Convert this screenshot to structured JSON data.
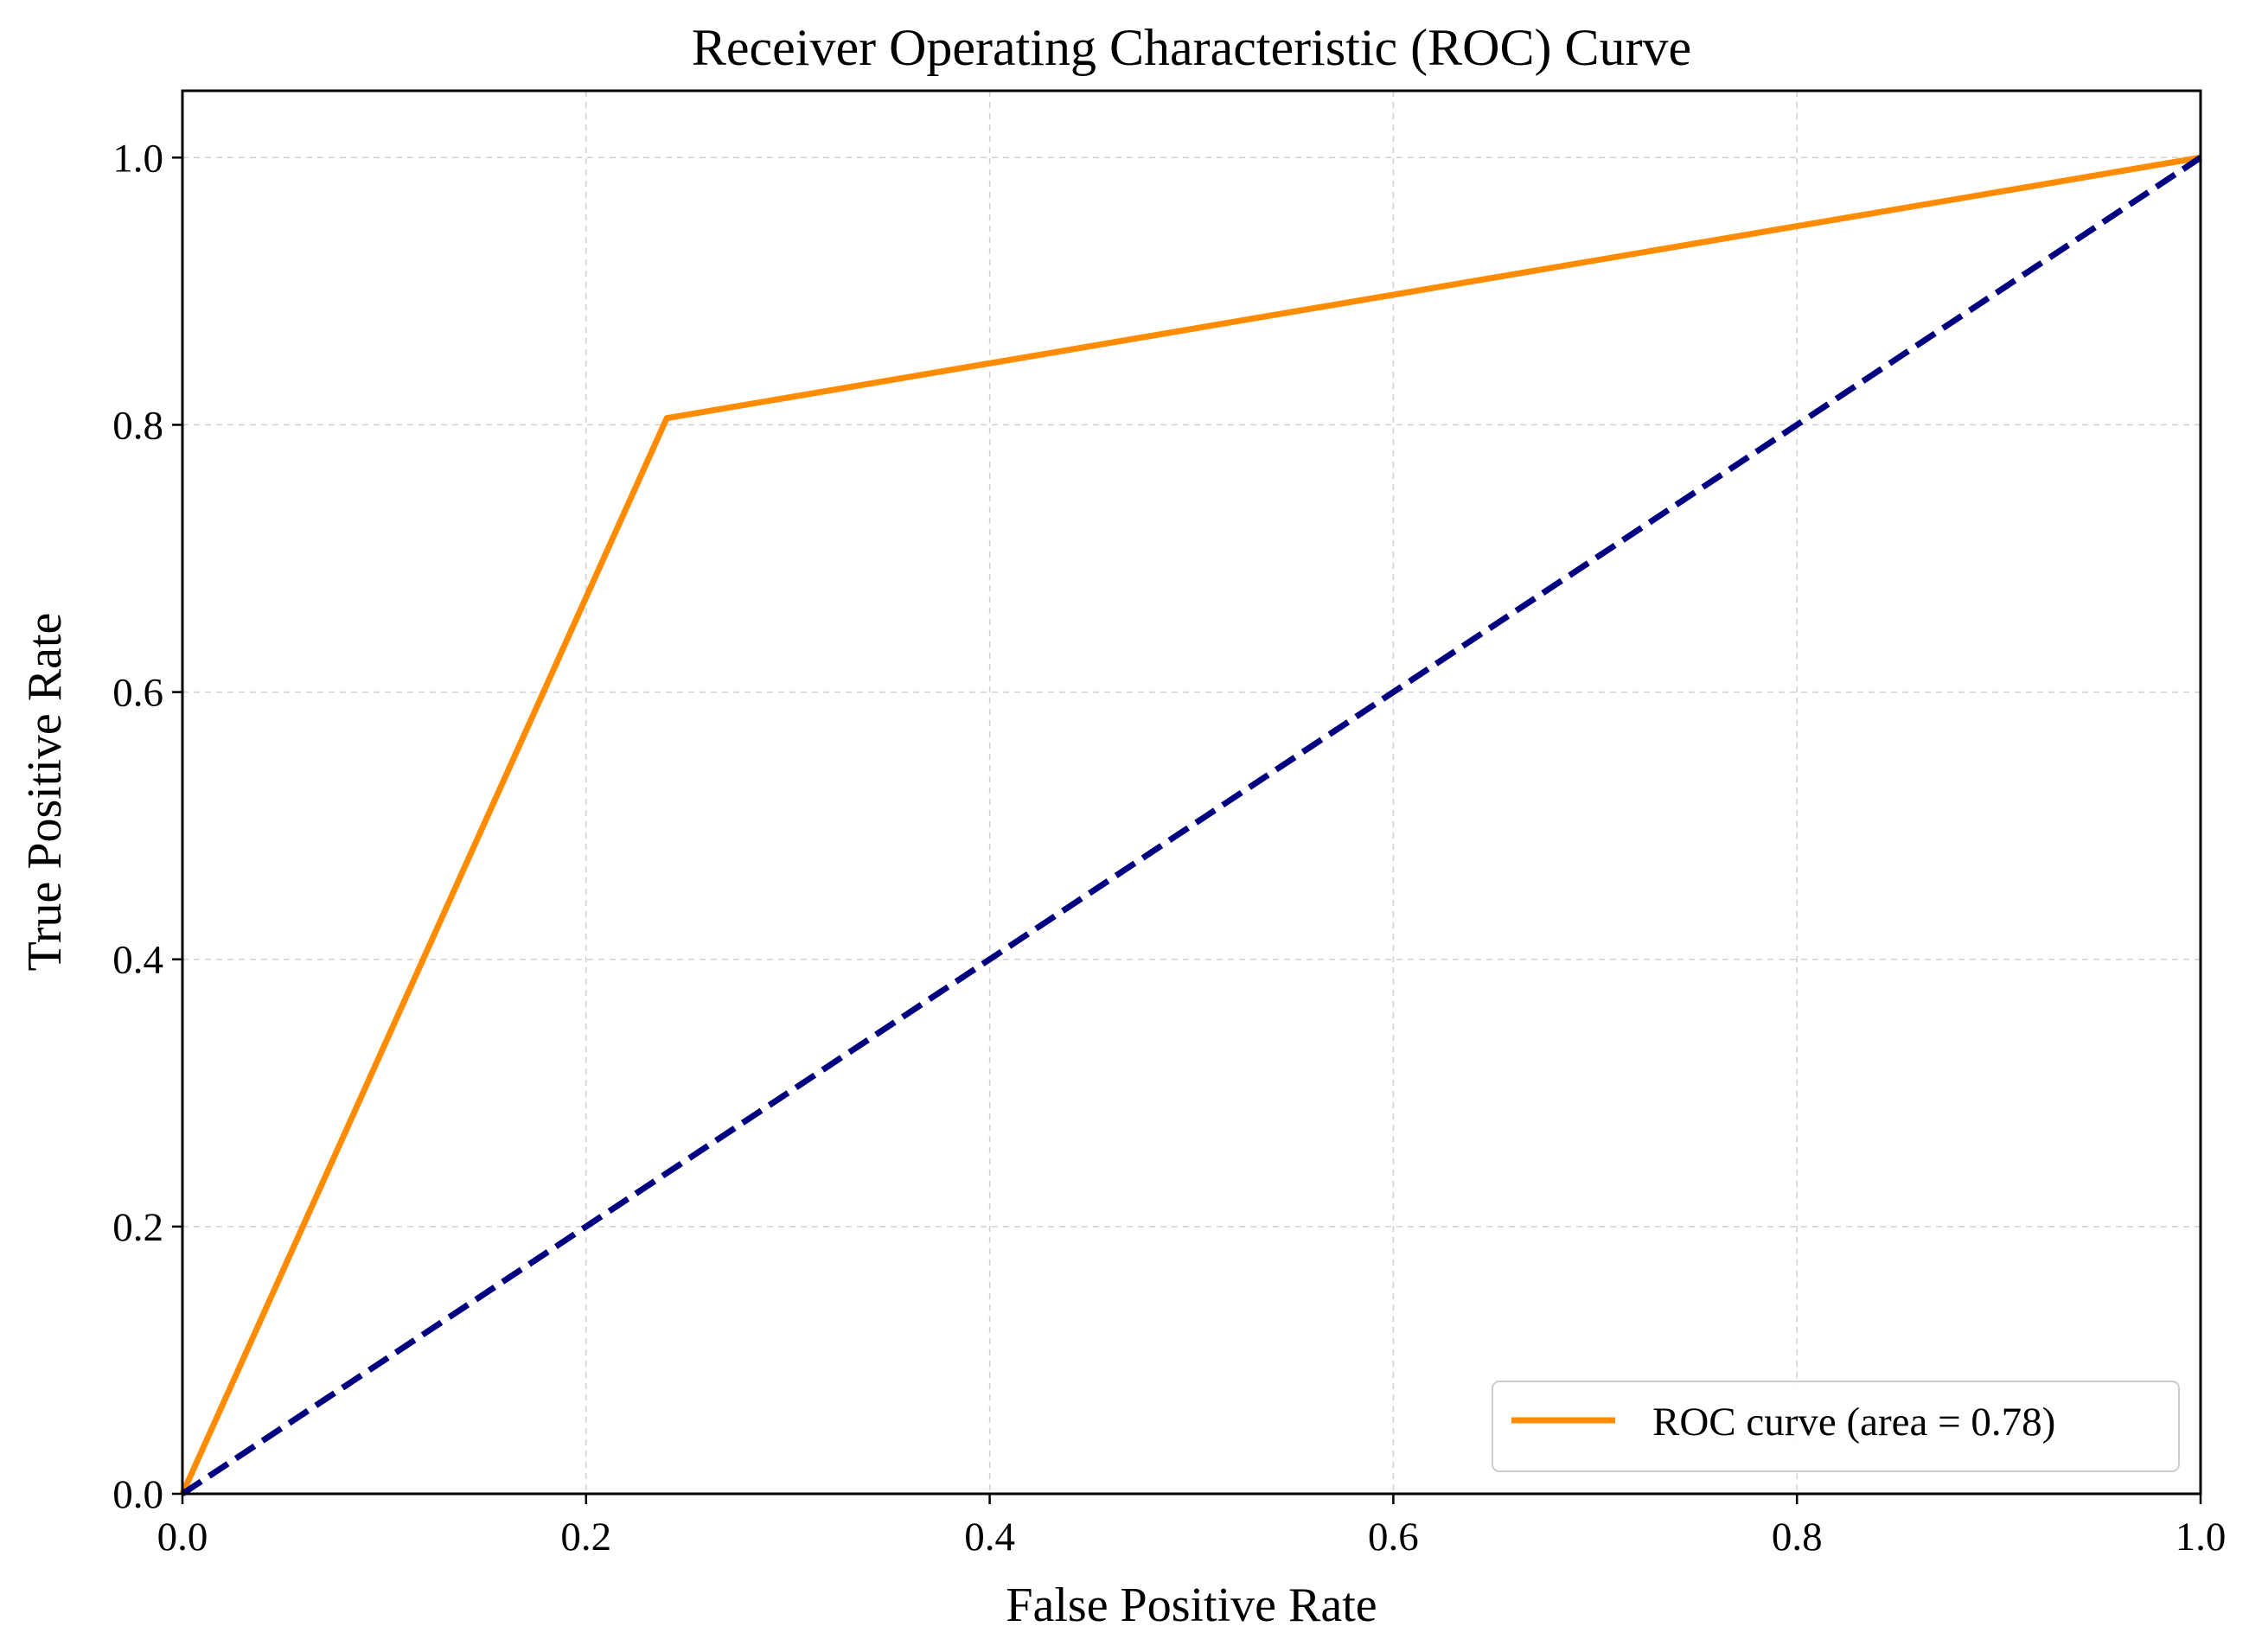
{
  "chart_data": {
    "type": "line",
    "title": "Receiver Operating Characteristic (ROC) Curve",
    "xlabel": "False Positive Rate",
    "ylabel": "True Positive Rate",
    "xlim": [
      0.0,
      1.0
    ],
    "ylim": [
      0.0,
      1.05
    ],
    "xticks": [
      "0.0",
      "0.2",
      "0.4",
      "0.6",
      "0.8",
      "1.0"
    ],
    "yticks": [
      "0.0",
      "0.2",
      "0.4",
      "0.6",
      "0.8",
      "1.0"
    ],
    "grid": true,
    "legend_position": "lower-right",
    "series": [
      {
        "name": "ROC curve (area = 0.78)",
        "x": [
          0.0,
          0.24,
          1.0
        ],
        "y": [
          0.0,
          0.805,
          1.0
        ],
        "color": "#ff8c00",
        "style": "solid"
      },
      {
        "x": [
          0.0,
          1.0
        ],
        "y": [
          0.0,
          1.0
        ],
        "color": "#000080",
        "style": "dashed"
      }
    ]
  }
}
